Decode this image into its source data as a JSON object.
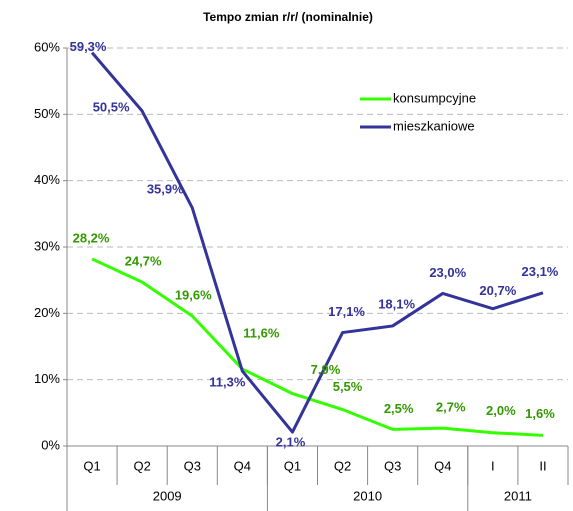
{
  "chart_data": {
    "type": "line",
    "title": "Tempo zmian r/r/ (nominalnie)",
    "categories": [
      "Q1",
      "Q2",
      "Q3",
      "Q4",
      "Q1",
      "Q2",
      "Q3",
      "Q4",
      "I",
      "II"
    ],
    "category_groups": [
      {
        "name": "2009",
        "count": 4
      },
      {
        "name": "2010",
        "count": 4
      },
      {
        "name": "2011",
        "count": 2
      }
    ],
    "series": [
      {
        "name": "konsumpcyjne",
        "color": "#33ff00",
        "label_color": "#339900",
        "values": [
          28.2,
          24.7,
          19.6,
          11.6,
          7.9,
          5.5,
          2.5,
          2.7,
          2.0,
          1.6
        ],
        "value_labels": [
          "28,2%",
          "24,7%",
          "19,6%",
          "11,6%",
          "7,9%",
          "5,5%",
          "2,5%",
          "2,7%",
          "2,0%",
          "1,6%"
        ]
      },
      {
        "name": "mieszkaniowe",
        "color": "#333399",
        "label_color": "#333399",
        "values": [
          59.3,
          50.5,
          35.9,
          11.3,
          2.1,
          17.1,
          18.1,
          23.0,
          20.7,
          23.1
        ],
        "value_labels": [
          "59,3%",
          "50,5%",
          "35,9%",
          "11,3%",
          "2,1%",
          "17,1%",
          "18,1%",
          "23,0%",
          "20,7%",
          "23,1%"
        ]
      }
    ],
    "ylim": [
      0,
      60
    ],
    "yticks": [
      {
        "value": 0,
        "label": "0%"
      },
      {
        "value": 10,
        "label": "10%"
      },
      {
        "value": 20,
        "label": "20%"
      },
      {
        "value": 30,
        "label": "30%"
      },
      {
        "value": 40,
        "label": "40%"
      },
      {
        "value": 50,
        "label": "50%"
      },
      {
        "value": 60,
        "label": "60%"
      }
    ],
    "grid": true,
    "legend": "upper right"
  }
}
